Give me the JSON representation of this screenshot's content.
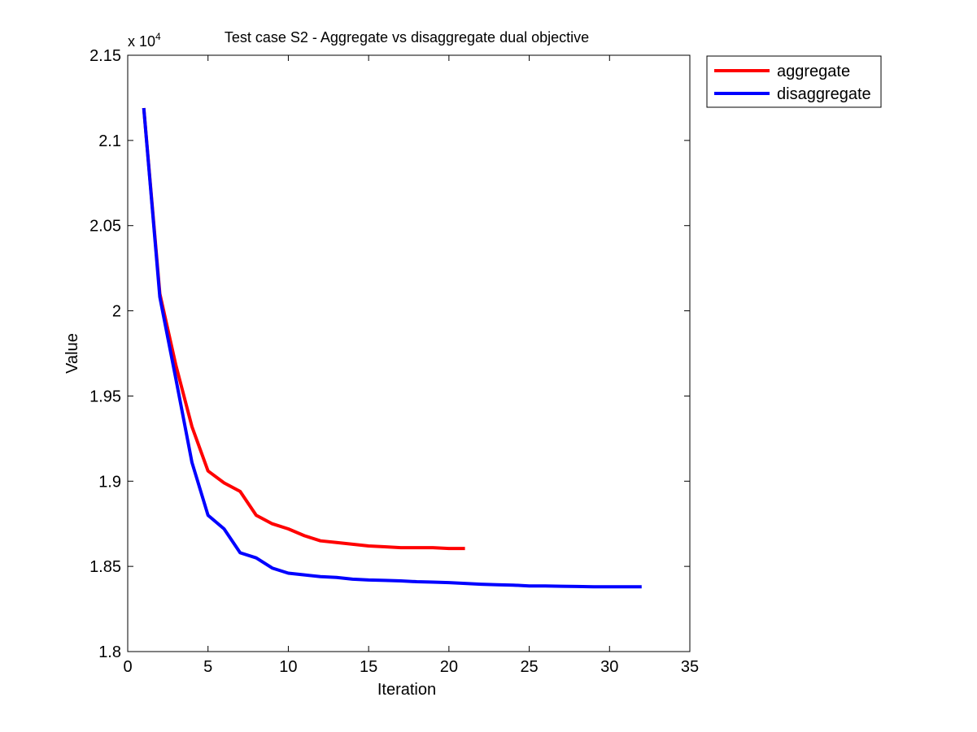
{
  "chart_data": {
    "type": "line",
    "title": "Test case S2 - Aggregate vs disaggregate dual objective",
    "xlabel": "Iteration",
    "ylabel": "Value",
    "y_exponent_label": {
      "base": "x 10",
      "exp": "4"
    },
    "xlim": [
      0,
      35
    ],
    "ylim": [
      1.8,
      2.15
    ],
    "y_scale_factor": 10000,
    "x_ticks": [
      0,
      5,
      10,
      15,
      20,
      25,
      30,
      35
    ],
    "x_tick_labels": [
      "0",
      "5",
      "10",
      "15",
      "20",
      "25",
      "30",
      "35"
    ],
    "y_ticks": [
      1.8,
      1.85,
      1.9,
      1.95,
      2.0,
      2.05,
      2.1,
      2.15
    ],
    "y_tick_labels": [
      "1.8",
      "1.85",
      "1.9",
      "1.95",
      "2",
      "2.05",
      "2.1",
      "2.15"
    ],
    "grid": false,
    "legend_position": "outside-top-right",
    "series": [
      {
        "name": "aggregate",
        "color": "#ff0000",
        "x": [
          1,
          2,
          3,
          4,
          5,
          6,
          7,
          8,
          9,
          10,
          11,
          12,
          13,
          14,
          15,
          16,
          17,
          18,
          19,
          20,
          21
        ],
        "y": [
          2.119,
          2.01,
          1.968,
          1.932,
          1.906,
          1.899,
          1.894,
          1.88,
          1.875,
          1.872,
          1.868,
          1.865,
          1.864,
          1.863,
          1.862,
          1.8615,
          1.861,
          1.861,
          1.861,
          1.8605,
          1.8605
        ]
      },
      {
        "name": "disaggregate",
        "color": "#0000ff",
        "x": [
          1,
          2,
          3,
          4,
          5,
          6,
          7,
          8,
          9,
          10,
          11,
          12,
          13,
          14,
          15,
          16,
          17,
          18,
          19,
          20,
          21,
          22,
          23,
          24,
          25,
          26,
          27,
          28,
          29,
          30,
          31,
          32
        ],
        "y": [
          2.119,
          2.008,
          1.96,
          1.911,
          1.88,
          1.872,
          1.858,
          1.855,
          1.849,
          1.846,
          1.845,
          1.844,
          1.8435,
          1.8425,
          1.842,
          1.8418,
          1.8415,
          1.841,
          1.8408,
          1.8405,
          1.84,
          1.8395,
          1.8392,
          1.839,
          1.8385,
          1.8385,
          1.8383,
          1.8382,
          1.838,
          1.838,
          1.838,
          1.838
        ]
      }
    ]
  }
}
